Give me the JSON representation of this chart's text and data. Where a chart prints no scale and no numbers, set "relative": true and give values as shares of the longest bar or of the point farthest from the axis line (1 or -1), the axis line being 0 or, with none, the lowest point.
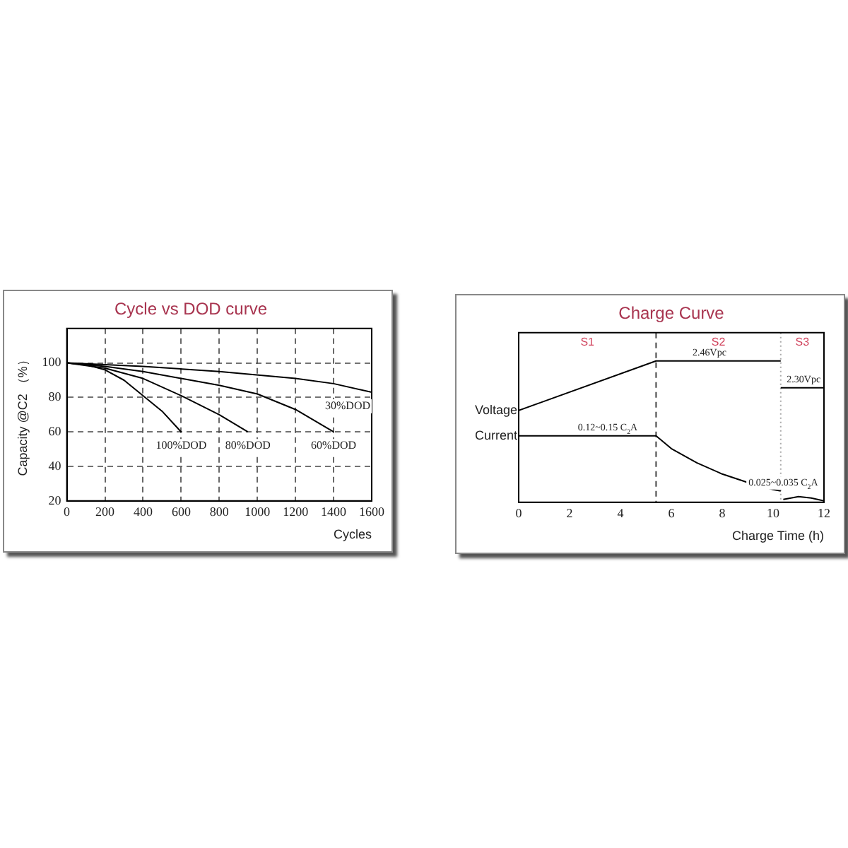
{
  "chart_data": [
    {
      "type": "line",
      "title": "Cycle vs DOD curve",
      "xlabel": "Cycles",
      "ylabel": "Capacity @C2 （%）",
      "xlim": [
        0,
        1600
      ],
      "xticks": [
        0,
        200,
        400,
        600,
        800,
        1000,
        1200,
        1400,
        1600
      ],
      "ylim": [
        20,
        120
      ],
      "yticks": [
        20,
        40,
        60,
        80,
        100
      ],
      "grid": true,
      "legend": false,
      "marker": "none",
      "line_style": "solid",
      "series": [
        {
          "name": "100%DOD",
          "color": "#000000",
          "x": [
            0,
            100,
            200,
            300,
            400,
            500,
            600
          ],
          "values": [
            100,
            99,
            96,
            90,
            81,
            72,
            60
          ]
        },
        {
          "name": "80%DOD",
          "color": "#000000",
          "x": [
            0,
            200,
            400,
            600,
            800,
            950
          ],
          "values": [
            100,
            97,
            91,
            81,
            70,
            60
          ]
        },
        {
          "name": "60%DOD",
          "color": "#000000",
          "x": [
            0,
            200,
            400,
            600,
            800,
            1000,
            1200,
            1400
          ],
          "values": [
            100,
            98,
            95,
            91,
            87,
            82,
            73,
            60
          ]
        },
        {
          "name": "30%DOD",
          "color": "#000000",
          "x": [
            0,
            400,
            800,
            1200,
            1400,
            1600
          ],
          "values": [
            100,
            98,
            95,
            91,
            88,
            83
          ]
        }
      ]
    },
    {
      "type": "line",
      "title": "Charge Curve",
      "xlabel": "Charge Time (h)",
      "xlim": [
        0,
        12
      ],
      "xticks": [
        0,
        2,
        4,
        6,
        8,
        10,
        12
      ],
      "relative": true,
      "tick_labels": "x",
      "grid": false,
      "legend": false,
      "marker": "none",
      "line_style": "solid",
      "series": [
        {
          "name": "Voltage",
          "color": "#000000",
          "x": [
            0,
            5.4,
            10.3
          ],
          "values": [
            0.65,
            1,
            1
          ]
        },
        {
          "color": "#000000",
          "x": [
            10.3,
            12
          ],
          "values": [
            0.81,
            0.81
          ]
        },
        {
          "name": "Current",
          "color": "#000000",
          "x": [
            0,
            5.4,
            6,
            7,
            8,
            9,
            10,
            10.3
          ],
          "values": [
            0.47,
            0.47,
            0.38,
            0.28,
            0.2,
            0.14,
            0.09,
            0.08
          ]
        },
        {
          "color": "#000000",
          "x": [
            10.4,
            11,
            11.5,
            12
          ],
          "values": [
            0.02,
            0.04,
            0.03,
            0.01
          ]
        }
      ],
      "ref_lines": [
        {
          "axis": "x",
          "value": 5.4,
          "color": "#444444",
          "line_style": "dashed"
        },
        {
          "axis": "x",
          "value": 10.3,
          "color": "#aaaaaa",
          "line_style": "dotted"
        }
      ],
      "annotations": [
        "S1",
        "S2",
        "S3",
        {
          "text": "2.46Vpc",
          "x": 7.5,
          "y": 1
        },
        {
          "text": "2.30Vpc",
          "x": 11.2,
          "y": 0.81
        },
        {
          "text": "0.12~0.15 C$_{2}$A",
          "x": 3.5,
          "y": 0.47
        },
        {
          "text": "0.025~0.035 C$_{2}$A",
          "x": 10.4,
          "y": 0.08
        }
      ]
    }
  ]
}
